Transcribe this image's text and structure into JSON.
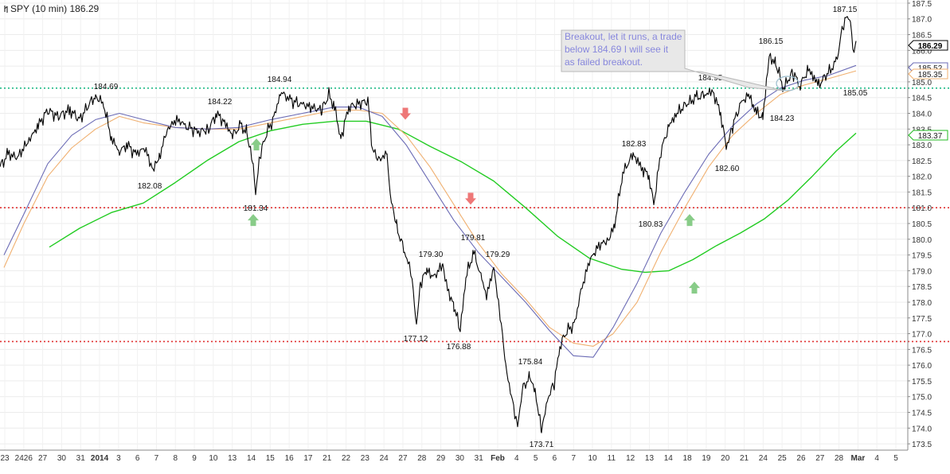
{
  "header": {
    "title": "SPY (10 min) 186.29"
  },
  "annotation": {
    "lines": [
      "Breakout, let it runs, a trade",
      "below 184.69 I will see it",
      "as failed breakout."
    ]
  },
  "colors": {
    "price": "#000000",
    "ma_blue": "#6b6bb5",
    "ma_orange": "#f0b070",
    "ma_green": "#22cc22",
    "support_green": "#22bb88",
    "support_red": "#e03333",
    "arrow_up": "#88cc88",
    "arrow_down": "#ee7777",
    "annotation_text": "#8888dd",
    "annotation_fill": "#e8e8e8"
  },
  "chart_data": {
    "type": "line",
    "title": "SPY (10 min) 186.29",
    "last_price": 186.29,
    "ylim": [
      173.3,
      187.6
    ],
    "y_ticks": [
      173.5,
      174.0,
      174.5,
      175.0,
      175.5,
      176.0,
      176.5,
      177.0,
      177.5,
      178.0,
      178.5,
      179.0,
      179.5,
      180.0,
      180.5,
      181.0,
      181.5,
      182.0,
      182.5,
      183.0,
      183.5,
      184.0,
      184.5,
      185.0,
      185.5,
      186.0,
      186.5,
      187.0,
      187.5
    ],
    "y_tick_labels": [
      "173.5",
      "174.0",
      "174.5",
      "175.0",
      "175.5",
      "176.0",
      "176.5",
      "177.0",
      "177.5",
      "178.0",
      "178.5",
      "179.0",
      "179.5",
      "180.0",
      "180.5",
      "181.0",
      "181.5",
      "182.0",
      "182.5",
      "183.0",
      "183.5",
      "184.0",
      "184.5",
      "185.0",
      "185.5",
      "186.0",
      "186.5",
      "187.0",
      "187.5"
    ],
    "x_ticks": [
      "23",
      "2426",
      "27",
      "30",
      "31",
      "2014",
      "3",
      "6",
      "7",
      "8",
      "9",
      "10",
      "13",
      "14",
      "15",
      "16",
      "17",
      "21",
      "22",
      "23",
      "24",
      "27",
      "28",
      "29",
      "30",
      "31",
      "Feb",
      "4",
      "5",
      "6",
      "7",
      "10",
      "11",
      "12",
      "13",
      "14",
      "18",
      "19",
      "20",
      "21",
      "24",
      "25",
      "26",
      "27",
      "28",
      "Mar",
      "4",
      "5"
    ],
    "grid": true,
    "legend": "none",
    "horizontal_levels": [
      {
        "value": 184.8,
        "style": "dotted",
        "color": "#22bb88"
      },
      {
        "value": 181.0,
        "style": "dotted",
        "color": "#e03333"
      },
      {
        "value": 176.75,
        "style": "dotted",
        "color": "#e03333"
      }
    ],
    "price_labels": [
      {
        "text": "184.69",
        "price": 184.69
      },
      {
        "text": "184.22",
        "price": 184.22
      },
      {
        "text": "182.08",
        "price": 182.08
      },
      {
        "text": "181.34",
        "price": 181.34
      },
      {
        "text": "184.94",
        "price": 184.94
      },
      {
        "text": "179.30",
        "price": 179.3
      },
      {
        "text": "177.12",
        "price": 177.12
      },
      {
        "text": "179.81",
        "price": 179.81
      },
      {
        "text": "176.88",
        "price": 176.88
      },
      {
        "text": "179.29",
        "price": 179.29
      },
      {
        "text": "175.84",
        "price": 175.84
      },
      {
        "text": "173.71",
        "price": 173.71
      },
      {
        "text": "182.83",
        "price": 182.83
      },
      {
        "text": "180.83",
        "price": 180.83
      },
      {
        "text": "184.95",
        "price": 184.95
      },
      {
        "text": "182.60",
        "price": 182.6
      },
      {
        "text": "186.15",
        "price": 186.15
      },
      {
        "text": "184.23",
        "price": 184.23
      },
      {
        "text": "187.15",
        "price": 187.15
      },
      {
        "text": "185.05",
        "price": 185.05
      }
    ],
    "axis_markers": [
      {
        "text": "186.29",
        "value": 186.29,
        "style": "current"
      },
      {
        "text": "185.52",
        "value": 185.52,
        "style": "blue"
      },
      {
        "text": "185.35",
        "value": 185.35,
        "style": "orange"
      },
      {
        "text": "183.37",
        "value": 183.37,
        "style": "green"
      }
    ],
    "arrows": [
      {
        "dir": "up",
        "price": 180.6
      },
      {
        "dir": "up",
        "price": 183.0
      },
      {
        "dir": "down",
        "price": 184.0
      },
      {
        "dir": "down",
        "price": 181.3
      },
      {
        "dir": "up",
        "price": 180.6
      },
      {
        "dir": "up",
        "price": 178.45
      }
    ],
    "series": [
      {
        "key": "price",
        "values": [
          [
            0,
            182.3
          ],
          [
            10,
            182.7
          ],
          [
            22,
            182.6
          ],
          [
            35,
            183.1
          ],
          [
            48,
            183.6
          ],
          [
            60,
            184.1
          ],
          [
            72,
            183.9
          ],
          [
            88,
            184.1
          ],
          [
            100,
            183.8
          ],
          [
            112,
            184.3
          ],
          [
            120,
            184.55
          ],
          [
            130,
            184.3
          ],
          [
            140,
            183.2
          ],
          [
            150,
            182.8
          ],
          [
            160,
            183.0
          ],
          [
            170,
            182.7
          ],
          [
            182,
            182.9
          ],
          [
            192,
            182.2
          ],
          [
            200,
            182.6
          ],
          [
            210,
            183.5
          ],
          [
            222,
            183.8
          ],
          [
            235,
            183.6
          ],
          [
            248,
            183.4
          ],
          [
            262,
            183.5
          ],
          [
            272,
            184.0
          ],
          [
            282,
            183.7
          ],
          [
            292,
            183.3
          ],
          [
            302,
            183.6
          ],
          [
            310,
            183.4
          ],
          [
            318,
            182.3
          ],
          [
            321,
            181.45
          ],
          [
            326,
            182.6
          ],
          [
            335,
            183.4
          ],
          [
            345,
            183.9
          ],
          [
            352,
            184.7
          ],
          [
            365,
            184.4
          ],
          [
            378,
            184.3
          ],
          [
            390,
            184.2
          ],
          [
            404,
            184.1
          ],
          [
            413,
            184.6
          ],
          [
            420,
            184.2
          ],
          [
            428,
            183.2
          ],
          [
            438,
            184.2
          ],
          [
            450,
            184.3
          ],
          [
            462,
            184.4
          ],
          [
            468,
            182.8
          ],
          [
            478,
            182.5
          ],
          [
            486,
            182.8
          ],
          [
            490,
            181.4
          ],
          [
            498,
            180.4
          ],
          [
            508,
            179.6
          ],
          [
            516,
            179.0
          ],
          [
            523,
            177.3
          ],
          [
            528,
            178.6
          ],
          [
            536,
            179.0
          ],
          [
            545,
            178.8
          ],
          [
            556,
            179.2
          ],
          [
            562,
            178.4
          ],
          [
            570,
            177.9
          ],
          [
            578,
            177.1
          ],
          [
            585,
            178.8
          ],
          [
            595,
            179.6
          ],
          [
            605,
            178.7
          ],
          [
            611,
            178.2
          ],
          [
            620,
            179.1
          ],
          [
            628,
            177.6
          ],
          [
            635,
            176.0
          ],
          [
            642,
            175.0
          ],
          [
            650,
            174.1
          ],
          [
            657,
            175.3
          ],
          [
            665,
            175.6
          ],
          [
            672,
            175.2
          ],
          [
            680,
            173.9
          ],
          [
            688,
            175.0
          ],
          [
            696,
            175.4
          ],
          [
            703,
            176.6
          ],
          [
            712,
            177.1
          ],
          [
            722,
            177.3
          ],
          [
            728,
            178.2
          ],
          [
            740,
            179.3
          ],
          [
            752,
            179.8
          ],
          [
            765,
            180.0
          ],
          [
            772,
            180.5
          ],
          [
            782,
            182.1
          ],
          [
            795,
            182.7
          ],
          [
            808,
            182.2
          ],
          [
            815,
            182.0
          ],
          [
            821,
            181.1
          ],
          [
            830,
            182.8
          ],
          [
            840,
            183.6
          ],
          [
            850,
            184.0
          ],
          [
            862,
            184.3
          ],
          [
            875,
            184.5
          ],
          [
            885,
            184.6
          ],
          [
            895,
            184.7
          ],
          [
            905,
            184.0
          ],
          [
            912,
            182.9
          ],
          [
            920,
            183.6
          ],
          [
            930,
            184.3
          ],
          [
            940,
            184.6
          ],
          [
            950,
            184.0
          ],
          [
            958,
            183.9
          ],
          [
            966,
            185.8
          ],
          [
            974,
            185.6
          ],
          [
            984,
            184.8
          ],
          [
            995,
            185.3
          ],
          [
            1005,
            184.9
          ],
          [
            1015,
            185.4
          ],
          [
            1028,
            184.9
          ],
          [
            1040,
            185.3
          ],
          [
            1050,
            185.6
          ],
          [
            1058,
            186.7
          ],
          [
            1064,
            187.1
          ],
          [
            1068,
            187.0
          ],
          [
            1071,
            185.9
          ],
          [
            1075,
            186.3
          ]
        ]
      },
      {
        "key": "ma_blue",
        "values": [
          [
            5,
            179.5
          ],
          [
            30,
            180.8
          ],
          [
            60,
            182.4
          ],
          [
            90,
            183.3
          ],
          [
            120,
            183.8
          ],
          [
            150,
            184.0
          ],
          [
            180,
            183.8
          ],
          [
            220,
            183.55
          ],
          [
            260,
            183.5
          ],
          [
            300,
            183.55
          ],
          [
            340,
            183.8
          ],
          [
            380,
            184.0
          ],
          [
            420,
            184.2
          ],
          [
            450,
            184.2
          ],
          [
            480,
            183.9
          ],
          [
            510,
            183.0
          ],
          [
            540,
            181.8
          ],
          [
            570,
            180.6
          ],
          [
            600,
            179.6
          ],
          [
            630,
            178.8
          ],
          [
            660,
            178.0
          ],
          [
            690,
            177.1
          ],
          [
            720,
            176.3
          ],
          [
            745,
            176.25
          ],
          [
            770,
            177.2
          ],
          [
            800,
            178.6
          ],
          [
            830,
            180.2
          ],
          [
            860,
            181.5
          ],
          [
            890,
            182.7
          ],
          [
            920,
            183.6
          ],
          [
            950,
            184.3
          ],
          [
            980,
            184.8
          ],
          [
            1010,
            185.05
          ],
          [
            1040,
            185.2
          ],
          [
            1075,
            185.52
          ]
        ]
      },
      {
        "key": "ma_orange",
        "values": [
          [
            5,
            179.1
          ],
          [
            30,
            180.5
          ],
          [
            60,
            182.0
          ],
          [
            90,
            182.9
          ],
          [
            120,
            183.5
          ],
          [
            150,
            183.9
          ],
          [
            180,
            183.7
          ],
          [
            220,
            183.55
          ],
          [
            260,
            183.5
          ],
          [
            300,
            183.5
          ],
          [
            340,
            183.7
          ],
          [
            380,
            183.9
          ],
          [
            420,
            184.1
          ],
          [
            450,
            184.1
          ],
          [
            480,
            184.0
          ],
          [
            510,
            183.3
          ],
          [
            540,
            182.3
          ],
          [
            570,
            181.1
          ],
          [
            600,
            179.9
          ],
          [
            630,
            178.9
          ],
          [
            660,
            178.1
          ],
          [
            690,
            177.2
          ],
          [
            720,
            176.7
          ],
          [
            745,
            176.6
          ],
          [
            770,
            177.0
          ],
          [
            800,
            178.0
          ],
          [
            830,
            179.6
          ],
          [
            860,
            181.0
          ],
          [
            890,
            182.3
          ],
          [
            920,
            183.3
          ],
          [
            950,
            184.0
          ],
          [
            980,
            184.6
          ],
          [
            1010,
            184.9
          ],
          [
            1040,
            185.1
          ],
          [
            1075,
            185.35
          ]
        ]
      },
      {
        "key": "ma_green",
        "values": [
          [
            62,
            179.75
          ],
          [
            100,
            180.35
          ],
          [
            140,
            180.85
          ],
          [
            180,
            181.15
          ],
          [
            220,
            181.8
          ],
          [
            260,
            182.5
          ],
          [
            300,
            183.1
          ],
          [
            340,
            183.45
          ],
          [
            380,
            183.65
          ],
          [
            420,
            183.75
          ],
          [
            460,
            183.75
          ],
          [
            500,
            183.5
          ],
          [
            540,
            182.95
          ],
          [
            580,
            182.45
          ],
          [
            620,
            181.85
          ],
          [
            660,
            181.0
          ],
          [
            700,
            180.1
          ],
          [
            740,
            179.4
          ],
          [
            780,
            179.05
          ],
          [
            810,
            178.95
          ],
          [
            840,
            179.0
          ],
          [
            870,
            179.35
          ],
          [
            900,
            179.8
          ],
          [
            930,
            180.2
          ],
          [
            960,
            180.65
          ],
          [
            990,
            181.25
          ],
          [
            1020,
            182.0
          ],
          [
            1050,
            182.8
          ],
          [
            1075,
            183.37
          ]
        ]
      }
    ]
  }
}
